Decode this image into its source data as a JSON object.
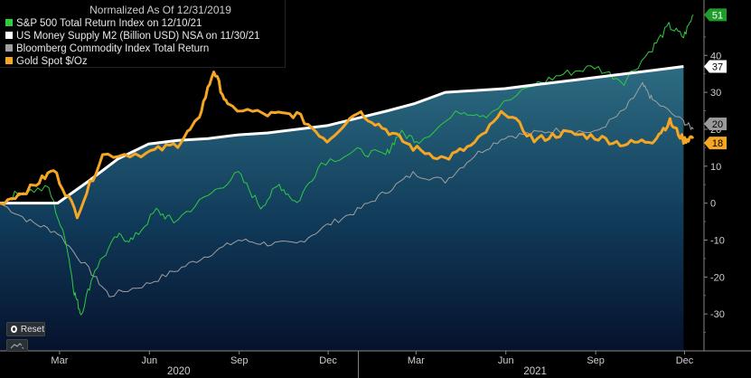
{
  "legend": {
    "title": "Normalized As Of 12/31/2019",
    "items": [
      {
        "label": "S&P 500 Total Return Index on 12/10/21",
        "color": "#2ecc40"
      },
      {
        "label": "US Money Supply M2 (Billion USD) NSA on 11/30/21",
        "color": "#ffffff"
      },
      {
        "label": "Bloomberg Commodity Index Total Return",
        "color": "#a0a0a0"
      },
      {
        "label": "Gold Spot $/Oz",
        "color": "#f5a623"
      }
    ]
  },
  "controls": {
    "reset_label": "Reset",
    "chart_type_icon": "line-chart-icon"
  },
  "chart_data": {
    "type": "line",
    "title": "Normalized As Of 12/31/2019",
    "x_range": [
      "2019-12-31",
      "2021-12-20"
    ],
    "ylim": [
      -40,
      55
    ],
    "yticks": [
      -30,
      -20,
      -10,
      0,
      10,
      20,
      30,
      40
    ],
    "month_ticks": [
      {
        "label": "Mar",
        "date": "2020-03-01"
      },
      {
        "label": "Jun",
        "date": "2020-06-01"
      },
      {
        "label": "Sep",
        "date": "2020-09-01"
      },
      {
        "label": "Dec",
        "date": "2020-12-01"
      },
      {
        "label": "Mar",
        "date": "2021-03-01"
      },
      {
        "label": "Jun",
        "date": "2021-06-01"
      },
      {
        "label": "Sep",
        "date": "2021-09-01"
      },
      {
        "label": "Dec",
        "date": "2021-12-01"
      }
    ],
    "years": [
      {
        "label": "2020",
        "date": "2020-07-01"
      },
      {
        "label": "2021",
        "date": "2021-07-01"
      }
    ],
    "series": [
      {
        "name": "S&P 500 Total Return Index on 12/10/21",
        "color": "#2ecc40",
        "width": 1,
        "last_label": "51",
        "points": [
          [
            "2019-12-31",
            0
          ],
          [
            "2020-01-20",
            3
          ],
          [
            "2020-02-19",
            4
          ],
          [
            "2020-03-09",
            -12
          ],
          [
            "2020-03-16",
            -24
          ],
          [
            "2020-03-23",
            -30
          ],
          [
            "2020-04-06",
            -18
          ],
          [
            "2020-04-29",
            -9
          ],
          [
            "2020-05-15",
            -10
          ],
          [
            "2020-06-08",
            -2
          ],
          [
            "2020-06-26",
            -5
          ],
          [
            "2020-07-31",
            2
          ],
          [
            "2020-08-31",
            8
          ],
          [
            "2020-09-23",
            -1
          ],
          [
            "2020-10-12",
            5
          ],
          [
            "2020-10-30",
            0
          ],
          [
            "2020-11-24",
            11
          ],
          [
            "2020-12-31",
            14
          ],
          [
            "2021-01-29",
            13
          ],
          [
            "2021-02-12",
            19
          ],
          [
            "2021-03-04",
            17
          ],
          [
            "2021-04-16",
            25
          ],
          [
            "2021-05-12",
            24
          ],
          [
            "2021-06-30",
            32
          ],
          [
            "2021-07-30",
            35
          ],
          [
            "2021-08-31",
            37
          ],
          [
            "2021-09-30",
            33
          ],
          [
            "2021-10-29",
            42
          ],
          [
            "2021-11-15",
            48
          ],
          [
            "2021-11-30",
            45
          ],
          [
            "2021-12-10",
            51
          ]
        ]
      },
      {
        "name": "US Money Supply M2 (Billion USD) NSA on 11/30/21",
        "color": "#ffffff",
        "width": 3,
        "last_label": "37",
        "points": [
          [
            "2019-12-31",
            0
          ],
          [
            "2020-02-28",
            0
          ],
          [
            "2020-03-31",
            6
          ],
          [
            "2020-04-30",
            12
          ],
          [
            "2020-05-31",
            16
          ],
          [
            "2020-06-30",
            17
          ],
          [
            "2020-07-31",
            17.5
          ],
          [
            "2020-08-31",
            18.5
          ],
          [
            "2020-09-30",
            19
          ],
          [
            "2020-10-31",
            20
          ],
          [
            "2020-11-30",
            21
          ],
          [
            "2020-12-31",
            23
          ],
          [
            "2021-01-31",
            25
          ],
          [
            "2021-02-28",
            27
          ],
          [
            "2021-03-31",
            30
          ],
          [
            "2021-04-30",
            30.5
          ],
          [
            "2021-05-31",
            31
          ],
          [
            "2021-06-30",
            32
          ],
          [
            "2021-07-31",
            33
          ],
          [
            "2021-08-31",
            34
          ],
          [
            "2021-09-30",
            35
          ],
          [
            "2021-10-31",
            36
          ],
          [
            "2021-11-30",
            37
          ]
        ]
      },
      {
        "name": "Bloomberg Commodity Index Total Return",
        "color": "#a0a0a0",
        "width": 1,
        "last_label": "20",
        "points": [
          [
            "2019-12-31",
            0
          ],
          [
            "2020-01-31",
            -5
          ],
          [
            "2020-02-28",
            -8
          ],
          [
            "2020-03-31",
            -18
          ],
          [
            "2020-04-21",
            -25
          ],
          [
            "2020-05-29",
            -22
          ],
          [
            "2020-06-30",
            -18
          ],
          [
            "2020-07-31",
            -14
          ],
          [
            "2020-08-31",
            -10
          ],
          [
            "2020-09-30",
            -11
          ],
          [
            "2020-10-30",
            -11
          ],
          [
            "2020-11-30",
            -6
          ],
          [
            "2020-12-31",
            -2
          ],
          [
            "2021-01-29",
            3
          ],
          [
            "2021-02-26",
            8
          ],
          [
            "2021-03-31",
            6
          ],
          [
            "2021-04-30",
            13
          ],
          [
            "2021-05-31",
            18
          ],
          [
            "2021-06-30",
            19
          ],
          [
            "2021-07-30",
            20
          ],
          [
            "2021-08-31",
            19
          ],
          [
            "2021-09-30",
            25
          ],
          [
            "2021-10-19",
            32
          ],
          [
            "2021-10-29",
            28
          ],
          [
            "2021-11-30",
            22
          ],
          [
            "2021-12-10",
            20
          ]
        ]
      },
      {
        "name": "Gold Spot $/Oz",
        "color": "#f5a623",
        "width": 3,
        "last_label": "18",
        "points": [
          [
            "2019-12-31",
            0
          ],
          [
            "2020-01-31",
            4
          ],
          [
            "2020-02-24",
            9
          ],
          [
            "2020-03-19",
            -3
          ],
          [
            "2020-04-14",
            13
          ],
          [
            "2020-05-29",
            13.5
          ],
          [
            "2020-06-30",
            16
          ],
          [
            "2020-07-20",
            22
          ],
          [
            "2020-08-06",
            36
          ],
          [
            "2020-08-20",
            26
          ],
          [
            "2020-09-30",
            24
          ],
          [
            "2020-10-30",
            24
          ],
          [
            "2020-11-30",
            17
          ],
          [
            "2020-12-31",
            25
          ],
          [
            "2021-01-29",
            20
          ],
          [
            "2021-02-26",
            15
          ],
          [
            "2021-03-31",
            12
          ],
          [
            "2021-04-30",
            16
          ],
          [
            "2021-05-31",
            25
          ],
          [
            "2021-06-30",
            17
          ],
          [
            "2021-07-30",
            19
          ],
          [
            "2021-08-31",
            18
          ],
          [
            "2021-09-30",
            16
          ],
          [
            "2021-10-29",
            17
          ],
          [
            "2021-11-16",
            22
          ],
          [
            "2021-11-30",
            17
          ],
          [
            "2021-12-10",
            18
          ]
        ]
      }
    ]
  }
}
